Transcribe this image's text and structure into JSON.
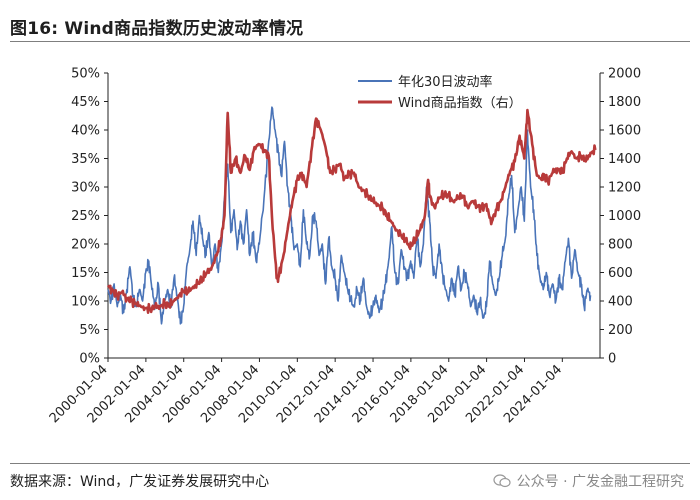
{
  "header": {
    "title": "图16:  Wind商品指数历史波动率情况"
  },
  "footer": {
    "source": "数据来源：Wind，广发证券发展研究中心",
    "watermark": "公众号 · 广发金融工程研究"
  },
  "chart_data": {
    "type": "line",
    "title": "",
    "xlabel": "",
    "ylabel_left": "",
    "ylabel_right": "",
    "x_range": [
      "2000-01-04",
      "2025-12-31"
    ],
    "x_tick_labels": [
      "2000-01-04",
      "2002-01-04",
      "2004-01-04",
      "2006-01-04",
      "2008-01-04",
      "2010-01-04",
      "2012-01-04",
      "2014-01-04",
      "2016-01-04",
      "2018-01-04",
      "2020-01-04",
      "2022-01-04",
      "2024-01-04"
    ],
    "ylim_left": [
      0,
      50
    ],
    "y_ticks_left": [
      "0%",
      "5%",
      "10%",
      "15%",
      "20%",
      "25%",
      "30%",
      "35%",
      "40%",
      "45%",
      "50%"
    ],
    "ylim_right": [
      0,
      2000
    ],
    "y_ticks_right": [
      "0",
      "200",
      "400",
      "600",
      "800",
      "1000",
      "1200",
      "1400",
      "1600",
      "1800",
      "2000"
    ],
    "legend_position": "top-center",
    "grid": false,
    "series": [
      {
        "name": "年化30日波动率",
        "axis": "left",
        "unit": "%",
        "color": "#4a74b8",
        "points": [
          [
            "2000-01-04",
            12
          ],
          [
            "2000-03-01",
            10
          ],
          [
            "2000-05-01",
            13
          ],
          [
            "2000-07-01",
            9
          ],
          [
            "2000-09-01",
            11
          ],
          [
            "2000-11-01",
            8
          ],
          [
            "2001-01-01",
            12
          ],
          [
            "2001-03-01",
            16
          ],
          [
            "2001-05-01",
            11
          ],
          [
            "2001-07-01",
            9
          ],
          [
            "2001-09-01",
            12
          ],
          [
            "2001-11-01",
            10
          ],
          [
            "2002-01-01",
            15
          ],
          [
            "2002-03-01",
            17
          ],
          [
            "2002-05-01",
            12
          ],
          [
            "2002-07-01",
            9
          ],
          [
            "2002-09-01",
            13
          ],
          [
            "2002-11-01",
            6
          ],
          [
            "2003-01-01",
            10
          ],
          [
            "2003-03-01",
            12
          ],
          [
            "2003-05-01",
            9
          ],
          [
            "2003-07-01",
            14
          ],
          [
            "2003-09-01",
            11
          ],
          [
            "2003-11-01",
            6
          ],
          [
            "2004-01-01",
            9
          ],
          [
            "2004-03-01",
            16
          ],
          [
            "2004-05-01",
            19
          ],
          [
            "2004-07-01",
            24
          ],
          [
            "2004-09-01",
            18
          ],
          [
            "2004-11-01",
            25
          ],
          [
            "2005-01-01",
            21
          ],
          [
            "2005-03-01",
            18
          ],
          [
            "2005-05-01",
            22
          ],
          [
            "2005-07-01",
            16
          ],
          [
            "2005-09-01",
            20
          ],
          [
            "2005-11-01",
            15
          ],
          [
            "2006-01-01",
            20
          ],
          [
            "2006-03-01",
            28
          ],
          [
            "2006-05-01",
            34
          ],
          [
            "2006-07-01",
            22
          ],
          [
            "2006-09-01",
            26
          ],
          [
            "2006-11-01",
            19
          ],
          [
            "2007-01-01",
            24
          ],
          [
            "2007-03-01",
            20
          ],
          [
            "2007-05-01",
            26
          ],
          [
            "2007-07-01",
            18
          ],
          [
            "2007-09-01",
            22
          ],
          [
            "2007-11-01",
            17
          ],
          [
            "2008-01-01",
            20
          ],
          [
            "2008-04-01",
            28
          ],
          [
            "2008-07-01",
            38
          ],
          [
            "2008-09-01",
            44
          ],
          [
            "2008-11-01",
            40
          ],
          [
            "2009-01-01",
            36
          ],
          [
            "2009-03-01",
            32
          ],
          [
            "2009-05-01",
            38
          ],
          [
            "2009-07-01",
            30
          ],
          [
            "2009-09-01",
            25
          ],
          [
            "2009-11-01",
            19
          ],
          [
            "2010-01-01",
            20
          ],
          [
            "2010-03-01",
            16
          ],
          [
            "2010-05-01",
            26
          ],
          [
            "2010-07-01",
            20
          ],
          [
            "2010-09-01",
            18
          ],
          [
            "2010-11-01",
            25
          ],
          [
            "2011-01-01",
            24
          ],
          [
            "2011-03-01",
            18
          ],
          [
            "2011-05-01",
            20
          ],
          [
            "2011-07-01",
            13
          ],
          [
            "2011-09-01",
            21
          ],
          [
            "2011-11-01",
            16
          ],
          [
            "2012-01-01",
            14
          ],
          [
            "2012-03-01",
            10
          ],
          [
            "2012-05-01",
            18
          ],
          [
            "2012-07-01",
            15
          ],
          [
            "2012-09-01",
            12
          ],
          [
            "2012-11-01",
            10
          ],
          [
            "2013-01-01",
            9
          ],
          [
            "2013-03-01",
            12
          ],
          [
            "2013-05-01",
            10
          ],
          [
            "2013-07-01",
            14
          ],
          [
            "2013-09-01",
            9
          ],
          [
            "2013-11-01",
            7
          ],
          [
            "2014-01-01",
            9
          ],
          [
            "2014-03-01",
            11
          ],
          [
            "2014-05-01",
            8
          ],
          [
            "2014-07-01",
            10
          ],
          [
            "2014-09-01",
            13
          ],
          [
            "2014-11-01",
            17
          ],
          [
            "2015-01-01",
            23
          ],
          [
            "2015-03-01",
            15
          ],
          [
            "2015-05-01",
            13
          ],
          [
            "2015-07-01",
            19
          ],
          [
            "2015-09-01",
            16
          ],
          [
            "2015-11-01",
            14
          ],
          [
            "2016-01-01",
            17
          ],
          [
            "2016-03-01",
            14
          ],
          [
            "2016-05-01",
            22
          ],
          [
            "2016-07-01",
            16
          ],
          [
            "2016-09-01",
            20
          ],
          [
            "2016-11-01",
            30
          ],
          [
            "2017-01-01",
            24
          ],
          [
            "2017-03-01",
            16
          ],
          [
            "2017-05-01",
            14
          ],
          [
            "2017-07-01",
            20
          ],
          [
            "2017-09-01",
            15
          ],
          [
            "2017-11-01",
            12
          ],
          [
            "2018-01-01",
            10
          ],
          [
            "2018-03-01",
            14
          ],
          [
            "2018-05-01",
            11
          ],
          [
            "2018-07-01",
            16
          ],
          [
            "2018-09-01",
            12
          ],
          [
            "2018-11-01",
            15
          ],
          [
            "2019-01-01",
            13
          ],
          [
            "2019-03-01",
            9
          ],
          [
            "2019-05-01",
            11
          ],
          [
            "2019-07-01",
            8
          ],
          [
            "2019-09-01",
            10
          ],
          [
            "2019-11-01",
            7
          ],
          [
            "2020-01-01",
            9
          ],
          [
            "2020-03-01",
            17
          ],
          [
            "2020-05-01",
            13
          ],
          [
            "2020-07-01",
            11
          ],
          [
            "2020-09-01",
            14
          ],
          [
            "2020-11-01",
            18
          ],
          [
            "2021-01-01",
            21
          ],
          [
            "2021-03-01",
            28
          ],
          [
            "2021-05-01",
            32
          ],
          [
            "2021-07-01",
            22
          ],
          [
            "2021-09-01",
            26
          ],
          [
            "2021-11-01",
            30
          ],
          [
            "2022-01-01",
            24
          ],
          [
            "2022-03-01",
            40
          ],
          [
            "2022-05-01",
            30
          ],
          [
            "2022-07-01",
            26
          ],
          [
            "2022-09-01",
            18
          ],
          [
            "2022-11-01",
            14
          ],
          [
            "2023-01-01",
            12
          ],
          [
            "2023-03-01",
            15
          ],
          [
            "2023-05-01",
            11
          ],
          [
            "2023-07-01",
            13
          ],
          [
            "2023-09-01",
            10
          ],
          [
            "2023-11-01",
            14
          ],
          [
            "2024-01-01",
            12
          ],
          [
            "2024-03-01",
            17
          ],
          [
            "2024-05-01",
            21
          ],
          [
            "2024-07-01",
            14
          ],
          [
            "2024-09-01",
            19
          ],
          [
            "2024-11-01",
            15
          ],
          [
            "2025-01-01",
            13
          ],
          [
            "2025-03-01",
            9
          ],
          [
            "2025-05-01",
            12
          ],
          [
            "2025-07-01",
            11
          ]
        ]
      },
      {
        "name": "Wind商品指数（右）",
        "axis": "right",
        "color": "#b83a3a",
        "points": [
          [
            "2000-01-04",
            510
          ],
          [
            "2000-04-01",
            470
          ],
          [
            "2000-07-01",
            440
          ],
          [
            "2000-10-01",
            460
          ],
          [
            "2001-01-01",
            420
          ],
          [
            "2001-04-01",
            400
          ],
          [
            "2001-07-01",
            380
          ],
          [
            "2001-10-01",
            360
          ],
          [
            "2002-01-01",
            350
          ],
          [
            "2002-04-01",
            345
          ],
          [
            "2002-07-01",
            355
          ],
          [
            "2002-10-01",
            365
          ],
          [
            "2003-01-01",
            380
          ],
          [
            "2003-04-01",
            370
          ],
          [
            "2003-07-01",
            400
          ],
          [
            "2003-10-01",
            440
          ],
          [
            "2004-01-01",
            470
          ],
          [
            "2004-04-01",
            460
          ],
          [
            "2004-07-01",
            500
          ],
          [
            "2004-10-01",
            520
          ],
          [
            "2005-01-01",
            560
          ],
          [
            "2005-04-01",
            600
          ],
          [
            "2005-07-01",
            640
          ],
          [
            "2005-10-01",
            720
          ],
          [
            "2006-01-01",
            850
          ],
          [
            "2006-03-01",
            1000
          ],
          [
            "2006-05-01",
            1720
          ],
          [
            "2006-07-01",
            1300
          ],
          [
            "2006-10-01",
            1400
          ],
          [
            "2007-01-01",
            1300
          ],
          [
            "2007-04-01",
            1420
          ],
          [
            "2007-07-01",
            1320
          ],
          [
            "2007-10-01",
            1480
          ],
          [
            "2008-01-01",
            1500
          ],
          [
            "2008-04-01",
            1460
          ],
          [
            "2008-07-01",
            1420
          ],
          [
            "2008-09-01",
            1000
          ],
          [
            "2008-12-01",
            560
          ],
          [
            "2009-01-01",
            560
          ],
          [
            "2009-04-01",
            700
          ],
          [
            "2009-07-01",
            900
          ],
          [
            "2009-10-01",
            1100
          ],
          [
            "2010-01-01",
            1250
          ],
          [
            "2010-04-01",
            1300
          ],
          [
            "2010-07-01",
            1200
          ],
          [
            "2010-10-01",
            1450
          ],
          [
            "2011-01-01",
            1680
          ],
          [
            "2011-04-01",
            1600
          ],
          [
            "2011-07-01",
            1480
          ],
          [
            "2011-10-01",
            1300
          ],
          [
            "2012-01-01",
            1330
          ],
          [
            "2012-04-01",
            1360
          ],
          [
            "2012-07-01",
            1260
          ],
          [
            "2012-10-01",
            1290
          ],
          [
            "2013-01-01",
            1300
          ],
          [
            "2013-04-01",
            1200
          ],
          [
            "2013-07-01",
            1180
          ],
          [
            "2013-10-01",
            1140
          ],
          [
            "2014-01-01",
            1100
          ],
          [
            "2014-04-01",
            1080
          ],
          [
            "2014-07-01",
            1050
          ],
          [
            "2014-10-01",
            1000
          ],
          [
            "2015-01-01",
            950
          ],
          [
            "2015-04-01",
            900
          ],
          [
            "2015-07-01",
            860
          ],
          [
            "2015-10-01",
            820
          ],
          [
            "2015-12-01",
            790
          ],
          [
            "2016-01-01",
            780
          ],
          [
            "2016-04-01",
            840
          ],
          [
            "2016-07-01",
            900
          ],
          [
            "2016-10-01",
            1000
          ],
          [
            "2016-12-01",
            1250
          ],
          [
            "2017-01-01",
            1130
          ],
          [
            "2017-04-01",
            1060
          ],
          [
            "2017-07-01",
            1120
          ],
          [
            "2017-10-01",
            1150
          ],
          [
            "2018-01-01",
            1140
          ],
          [
            "2018-04-01",
            1100
          ],
          [
            "2018-07-01",
            1120
          ],
          [
            "2018-10-01",
            1140
          ],
          [
            "2019-01-01",
            1060
          ],
          [
            "2019-04-01",
            1100
          ],
          [
            "2019-07-01",
            1070
          ],
          [
            "2019-10-01",
            1050
          ],
          [
            "2020-01-01",
            1080
          ],
          [
            "2020-04-01",
            940
          ],
          [
            "2020-07-01",
            1040
          ],
          [
            "2020-10-01",
            1100
          ],
          [
            "2021-01-01",
            1200
          ],
          [
            "2021-04-01",
            1310
          ],
          [
            "2021-07-01",
            1380
          ],
          [
            "2021-10-01",
            1560
          ],
          [
            "2022-01-01",
            1400
          ],
          [
            "2022-03-01",
            1740
          ],
          [
            "2022-06-01",
            1500
          ],
          [
            "2022-09-01",
            1280
          ],
          [
            "2022-12-01",
            1250
          ],
          [
            "2023-01-01",
            1290
          ],
          [
            "2023-04-01",
            1240
          ],
          [
            "2023-07-01",
            1300
          ],
          [
            "2023-10-01",
            1330
          ],
          [
            "2024-01-01",
            1300
          ],
          [
            "2024-04-01",
            1400
          ],
          [
            "2024-07-01",
            1450
          ],
          [
            "2024-10-01",
            1400
          ],
          [
            "2025-01-01",
            1420
          ],
          [
            "2025-04-01",
            1380
          ],
          [
            "2025-07-01",
            1440
          ],
          [
            "2025-10-01",
            1460
          ]
        ]
      }
    ]
  }
}
